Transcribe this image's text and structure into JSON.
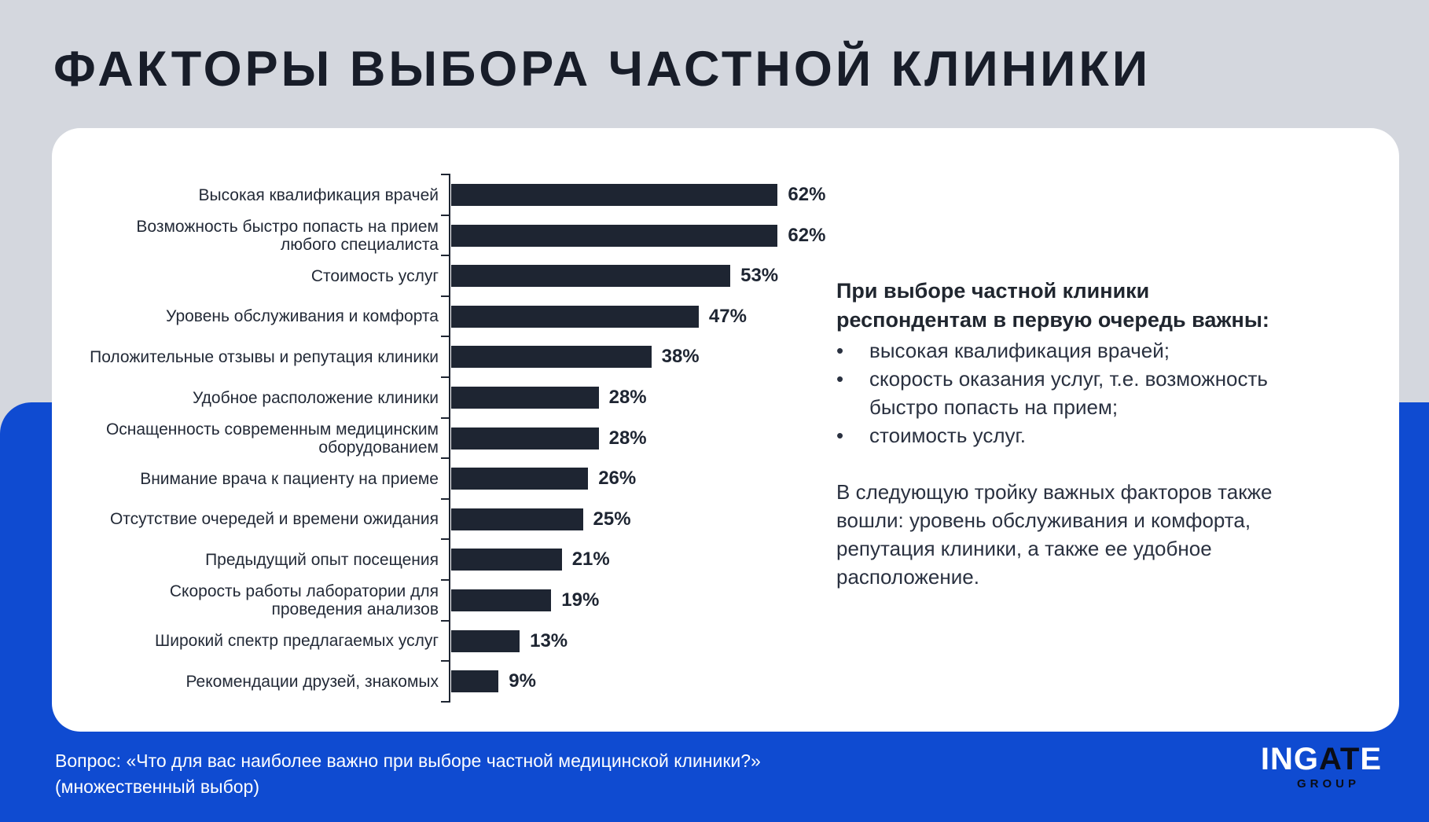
{
  "page": {
    "title": "ФАКТОРЫ ВЫБОРА ЧАСТНОЙ КЛИНИКИ"
  },
  "chart_data": {
    "type": "bar",
    "orientation": "horizontal",
    "unit": "%",
    "categories": [
      "Высокая квалификация врачей",
      "Возможность быстро попасть на прием любого специалиста",
      "Стоимость услуг",
      "Уровень обслуживания и комфорта",
      "Положительные отзывы и репутация клиники",
      "Удобное расположение клиники",
      "Оснащенность современным медицинским оборудованием",
      "Внимание врача к пациенту на приеме",
      "Отсутствие очередей и времени ожидания",
      "Предыдущий опыт посещения",
      "Скорость работы лаборатории для проведения анализов",
      "Широкий спектр предлагаемых услуг",
      "Рекомендации друзей, знакомых"
    ],
    "values": [
      62,
      62,
      53,
      47,
      38,
      28,
      28,
      26,
      25,
      21,
      19,
      13,
      9
    ],
    "value_labels": [
      "62%",
      "62%",
      "53%",
      "47%",
      "38%",
      "28%",
      "28%",
      "26%",
      "25%",
      "21%",
      "19%",
      "13%",
      "9%"
    ],
    "xlim": [
      0,
      65
    ],
    "grid": false,
    "legend": false,
    "bar_color": "#1E2532"
  },
  "insight": {
    "heading": "При выборе частной клиники респондентам в первую очередь важны:",
    "bullet_glyph": "•",
    "bullets": [
      "высокая квалификация врачей;",
      "скорость оказания услуг, т.е. возможность быстро попасть на прием;",
      "стоимость услуг."
    ],
    "paragraph": "В следующую тройку важных факторов также вошли: уровень обслуживания и комфорта, репутация клиники, а также ее удобное расположение."
  },
  "footer": {
    "line1": "Вопрос: «Что для вас наиболее важно при выборе частной медицинской клиники?»",
    "line2": "(множественный выбор)",
    "logo": {
      "part_white1": "ING",
      "part_dark": "AT",
      "part_white2": "E",
      "sub": "GROUP"
    }
  },
  "colors": {
    "background_top": "#D4D7DE",
    "background_bottom": "#0F4BD1",
    "card": "#FFFFFF",
    "bar": "#1E2532",
    "title_text": "#181D29",
    "body_text": "#2A3140",
    "footer_text": "#FFFFFF"
  }
}
